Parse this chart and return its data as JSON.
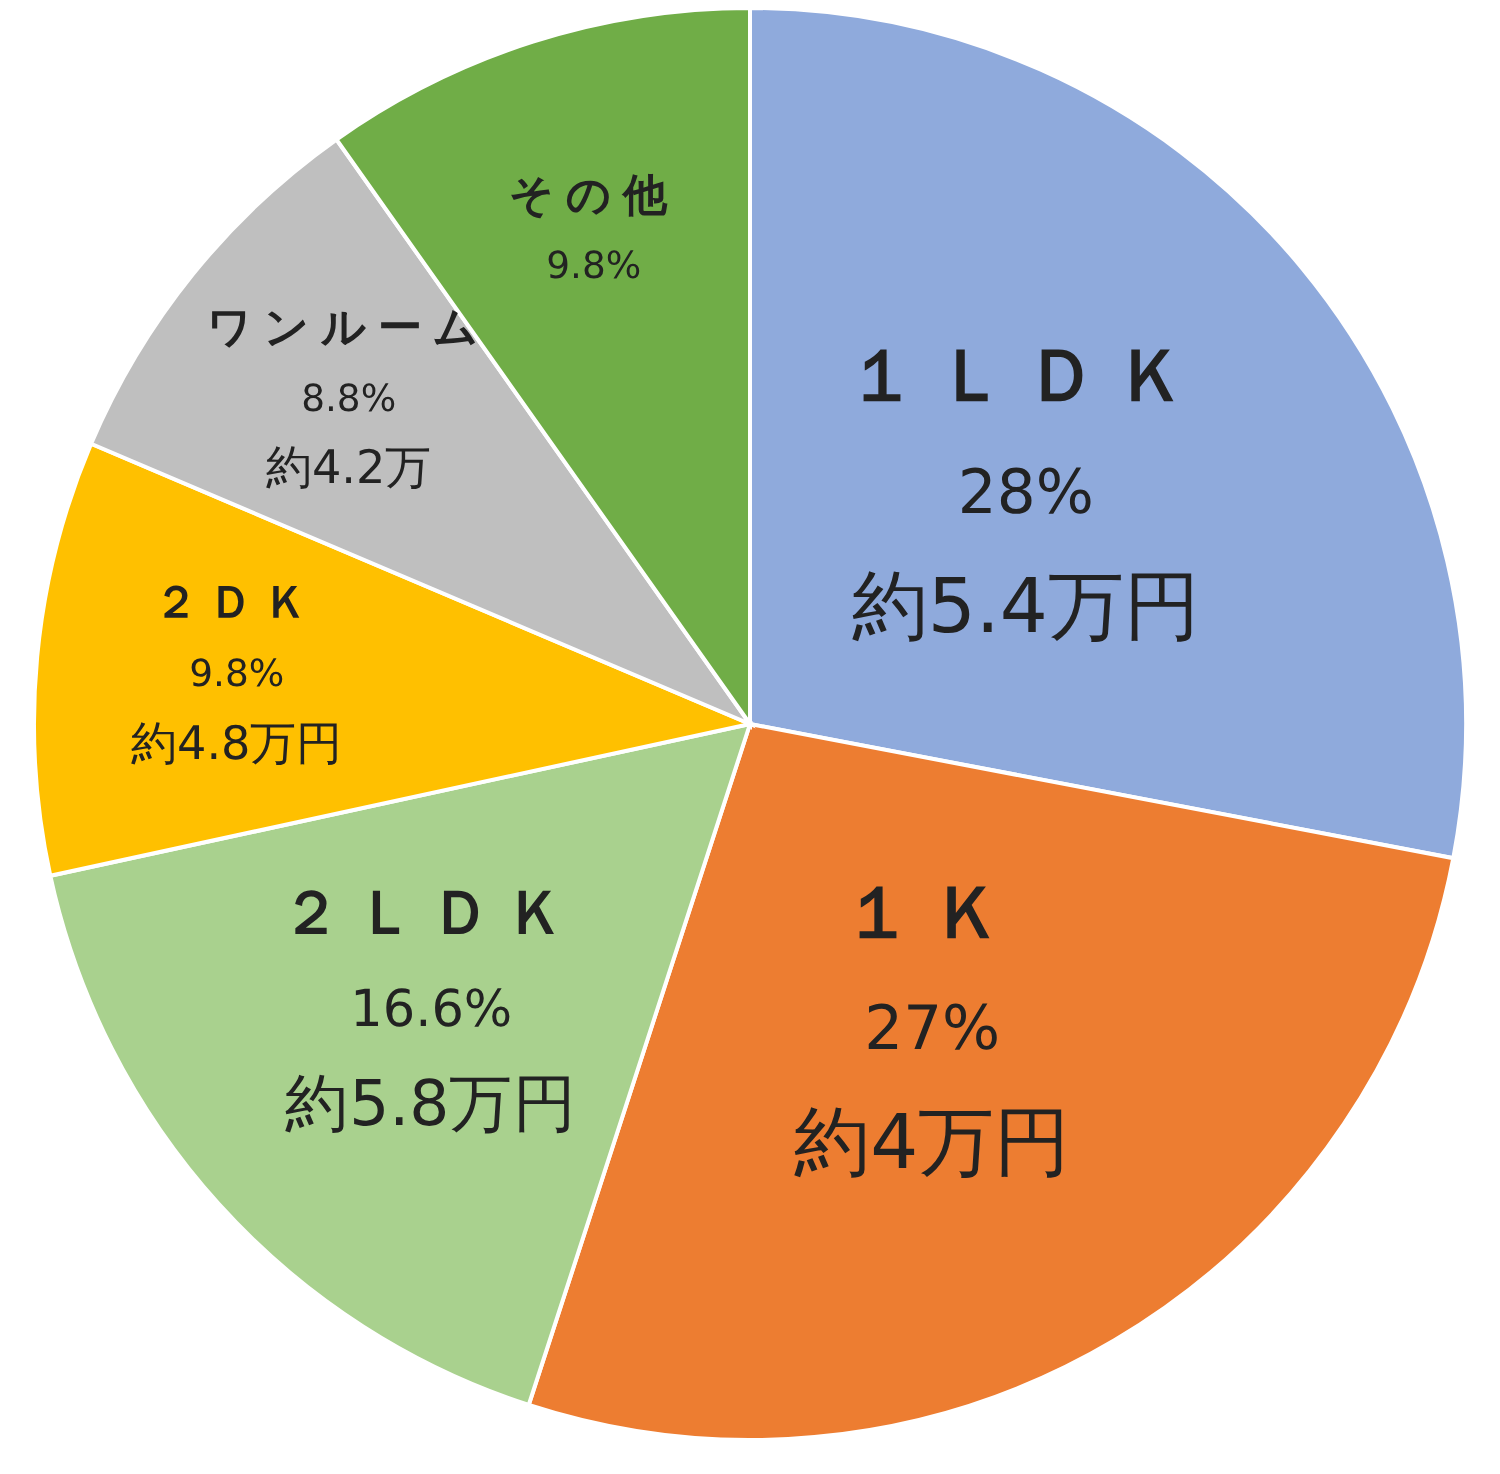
{
  "chart_data": {
    "type": "pie",
    "categories": [
      "１ＬＤＫ",
      "１Ｋ",
      "２ＬＤＫ",
      "２ＤＫ",
      "ワンルーム",
      "その他"
    ],
    "values": [
      28,
      27,
      16.6,
      9.8,
      8.8,
      9.8
    ],
    "colors": [
      "#8faadc",
      "#ed7d31",
      "#a9d18e",
      "#ffc000",
      "#bfbfbf",
      "#70ad47"
    ],
    "value_labels": [
      "28%",
      "27%",
      "16.6%",
      "9.8%",
      "8.8%",
      "9.8%"
    ],
    "annotations": [
      {
        "text": "約5.4万円",
        "x": "１ＬＤＫ"
      },
      {
        "text": "約4万円",
        "x": "１Ｋ"
      },
      {
        "text": "約5.8万円",
        "x": "２ＬＤＫ"
      },
      {
        "text": "約4.8万円",
        "x": "２ＤＫ"
      },
      {
        "text": "約4.2万",
        "x": "ワンルーム"
      }
    ],
    "legend": false
  }
}
